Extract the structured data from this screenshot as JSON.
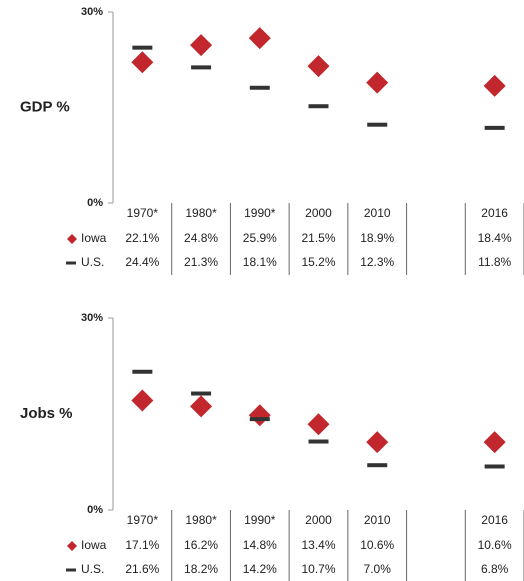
{
  "chart_data": [
    {
      "type": "scatter",
      "y_label": "GDP %",
      "categories": [
        "1970*",
        "1980*",
        "1990*",
        "2000",
        "2010",
        null,
        "2016"
      ],
      "ylim": [
        0,
        30
      ],
      "yticks": [
        {
          "value": 0,
          "label": "0%"
        },
        {
          "value": 30,
          "label": "30%"
        }
      ],
      "series": [
        {
          "name": "Iowa",
          "color": "#c1272d",
          "marker": "diamond",
          "values": [
            22.1,
            24.8,
            25.9,
            21.5,
            18.9,
            null,
            18.4
          ],
          "value_labels": [
            "22.1%",
            "24.8%",
            "25.9%",
            "21.5%",
            "18.9%",
            null,
            "18.4%"
          ]
        },
        {
          "name": "U.S.",
          "color": "#333333",
          "marker": "dash",
          "values": [
            24.4,
            21.3,
            18.1,
            15.2,
            12.3,
            null,
            11.8
          ],
          "value_labels": [
            "24.4%",
            "21.3%",
            "18.1%",
            "15.2%",
            "12.3%",
            null,
            "11.8%"
          ]
        }
      ]
    },
    {
      "type": "scatter",
      "y_label": "Jobs %",
      "categories": [
        "1970*",
        "1980*",
        "1990*",
        "2000",
        "2010",
        null,
        "2016"
      ],
      "ylim": [
        0,
        30
      ],
      "yticks": [
        {
          "value": 0,
          "label": "0%"
        },
        {
          "value": 30,
          "label": "30%"
        }
      ],
      "series": [
        {
          "name": "Iowa",
          "color": "#c1272d",
          "marker": "diamond",
          "values": [
            17.1,
            16.2,
            14.8,
            13.4,
            10.6,
            null,
            10.6
          ],
          "value_labels": [
            "17.1%",
            "16.2%",
            "14.8%",
            "13.4%",
            "10.6%",
            null,
            "10.6%"
          ]
        },
        {
          "name": "U.S.",
          "color": "#333333",
          "marker": "dash",
          "values": [
            21.6,
            18.2,
            14.2,
            10.7,
            7.0,
            null,
            6.8
          ],
          "value_labels": [
            "21.6%",
            "18.2%",
            "14.2%",
            "10.7%",
            "7.0%",
            null,
            "6.8%"
          ]
        }
      ]
    }
  ]
}
